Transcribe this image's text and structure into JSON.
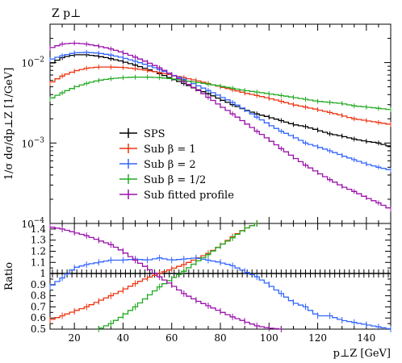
{
  "chart_data": [
    {
      "type": "line",
      "title": "Z p⊥",
      "ylabel": "1/σ dσ/dp⊥Z [1/GeV]",
      "xlabel": "",
      "x_scale": "linear",
      "y_scale": "log",
      "xlim": [
        10,
        150
      ],
      "ylim": [
        0.0001,
        0.03
      ],
      "y_tick_labels": [
        {
          "value": 0.01,
          "base": "10",
          "exp": "−2"
        },
        {
          "value": 0.001,
          "base": "10",
          "exp": "−3"
        },
        {
          "value": 0.0001,
          "base": "10",
          "exp": "−4"
        }
      ],
      "legend_position": "lower-left",
      "series": [
        {
          "name": "SPS",
          "color": "#000000",
          "x": [
            10,
            15,
            20,
            25,
            30,
            35,
            40,
            45,
            50,
            55,
            60,
            65,
            70,
            75,
            80,
            85,
            90,
            95,
            100,
            105,
            110,
            115,
            120,
            125,
            130,
            135,
            140,
            145,
            150
          ],
          "y": [
            0.0095,
            0.0115,
            0.0125,
            0.0125,
            0.012,
            0.0112,
            0.0103,
            0.0093,
            0.0083,
            0.0073,
            0.0063,
            0.0055,
            0.0047,
            0.0041,
            0.0035,
            0.003,
            0.0026,
            0.0023,
            0.0021,
            0.0019,
            0.0017,
            0.0016,
            0.00145,
            0.0013,
            0.00122,
            0.00112,
            0.00105,
            0.001,
            0.0009
          ]
        },
        {
          "name": "Sub β = 1",
          "color": "#ee3311",
          "x": [
            10,
            15,
            20,
            25,
            30,
            35,
            40,
            45,
            50,
            55,
            60,
            65,
            70,
            75,
            80,
            85,
            90,
            95,
            100,
            105,
            110,
            115,
            120,
            125,
            130,
            135,
            140,
            145,
            150
          ],
          "y": [
            0.0055,
            0.0068,
            0.0078,
            0.0085,
            0.0088,
            0.0088,
            0.0087,
            0.0084,
            0.008,
            0.0075,
            0.007,
            0.0065,
            0.006,
            0.0055,
            0.005,
            0.0046,
            0.0042,
            0.0039,
            0.0036,
            0.0033,
            0.003,
            0.0028,
            0.0026,
            0.0024,
            0.0022,
            0.002,
            0.0019,
            0.0018,
            0.0017
          ]
        },
        {
          "name": "Sub β = 2",
          "color": "#3366ff",
          "x": [
            10,
            15,
            20,
            25,
            30,
            35,
            40,
            45,
            50,
            55,
            60,
            65,
            70,
            75,
            80,
            85,
            90,
            95,
            100,
            105,
            110,
            115,
            120,
            125,
            130,
            135,
            140,
            145,
            150
          ],
          "y": [
            0.0108,
            0.0122,
            0.0132,
            0.0134,
            0.0131,
            0.0124,
            0.0115,
            0.0104,
            0.0093,
            0.0082,
            0.0071,
            0.0062,
            0.0053,
            0.0045,
            0.0038,
            0.0032,
            0.0026,
            0.0021,
            0.0017,
            0.0014,
            0.0012,
            0.001,
            0.0009,
            0.0008,
            0.0007,
            0.00062,
            0.00055,
            0.0005,
            0.00046
          ]
        },
        {
          "name": "Sub β = 1/2",
          "color": "#22aa22",
          "x": [
            10,
            15,
            20,
            25,
            30,
            35,
            40,
            45,
            50,
            55,
            60,
            65,
            70,
            75,
            80,
            85,
            90,
            95,
            100,
            105,
            110,
            115,
            120,
            125,
            130,
            135,
            140,
            145,
            150
          ],
          "y": [
            0.0035,
            0.0042,
            0.0049,
            0.0055,
            0.006,
            0.0063,
            0.0065,
            0.0066,
            0.0066,
            0.0065,
            0.0063,
            0.006,
            0.0057,
            0.0054,
            0.0051,
            0.0048,
            0.0045,
            0.0043,
            0.0041,
            0.0039,
            0.0037,
            0.0035,
            0.0033,
            0.0032,
            0.0031,
            0.0029,
            0.0028,
            0.0027,
            0.0026
          ]
        },
        {
          "name": "Sub fitted profile",
          "color": "#9911aa",
          "x": [
            10,
            15,
            20,
            25,
            30,
            35,
            40,
            45,
            50,
            55,
            60,
            65,
            70,
            75,
            80,
            85,
            90,
            95,
            100,
            105,
            110,
            115,
            120,
            125,
            130,
            135,
            140,
            145,
            150
          ],
          "y": [
            0.015,
            0.017,
            0.0175,
            0.017,
            0.016,
            0.0148,
            0.0133,
            0.0117,
            0.0101,
            0.0086,
            0.0071,
            0.0058,
            0.0047,
            0.0037,
            0.0029,
            0.0023,
            0.0018,
            0.0014,
            0.0011,
            0.00085,
            0.00067,
            0.00053,
            0.00043,
            0.00035,
            0.00029,
            0.00025,
            0.00021,
            0.00018,
            0.00015
          ]
        }
      ]
    },
    {
      "type": "line",
      "title": "",
      "xlabel": "p⊥Z [GeV]",
      "ylabel": "Ratio",
      "xlim": [
        10,
        150
      ],
      "ylim": [
        0.5,
        1.45
      ],
      "x_ticks": [
        20,
        40,
        60,
        80,
        100,
        120,
        140
      ],
      "y_ticks": [
        0.5,
        0.6,
        0.7,
        0.8,
        0.9,
        1,
        1.1,
        1.2,
        1.3,
        1.4
      ],
      "series": [
        {
          "name": "SPS",
          "color": "#000000",
          "x": [
            10,
            150
          ],
          "y": [
            1.0,
            1.0
          ]
        },
        {
          "name": "Sub β = 1",
          "color": "#ee3311",
          "x": [
            10,
            15,
            20,
            25,
            30,
            35,
            40,
            45,
            50,
            55,
            60,
            65,
            70,
            75,
            80,
            85,
            90,
            95
          ],
          "y": [
            0.58,
            0.62,
            0.66,
            0.7,
            0.75,
            0.8,
            0.85,
            0.91,
            0.96,
            1.0,
            1.04,
            1.08,
            1.13,
            1.18,
            1.25,
            1.33,
            1.4,
            1.45
          ]
        },
        {
          "name": "Sub β = 2",
          "color": "#3366ff",
          "x": [
            10,
            15,
            20,
            25,
            30,
            35,
            40,
            45,
            50,
            55,
            60,
            65,
            70,
            75,
            80,
            85,
            90,
            95,
            100,
            105,
            110,
            115,
            120,
            125,
            130,
            135,
            140,
            145,
            150
          ],
          "y": [
            0.88,
            0.96,
            1.05,
            1.08,
            1.1,
            1.12,
            1.12,
            1.13,
            1.12,
            1.14,
            1.12,
            1.13,
            1.14,
            1.12,
            1.1,
            1.07,
            1.02,
            0.97,
            0.9,
            0.82,
            0.74,
            0.7,
            0.62,
            0.62,
            0.58,
            0.56,
            0.54,
            0.52,
            0.5
          ]
        },
        {
          "name": "Sub β = 1/2",
          "color": "#22aa22",
          "x": [
            30,
            35,
            40,
            45,
            50,
            55,
            60,
            65,
            70,
            75,
            80,
            85,
            90,
            95
          ],
          "y": [
            0.5,
            0.55,
            0.62,
            0.7,
            0.79,
            0.88,
            0.95,
            1.02,
            1.1,
            1.17,
            1.25,
            1.32,
            1.4,
            1.45
          ]
        },
        {
          "name": "Sub fitted profile",
          "color": "#9911aa",
          "x": [
            10,
            15,
            20,
            25,
            30,
            35,
            40,
            45,
            50,
            55,
            60,
            65,
            70,
            75,
            80,
            85,
            90,
            95,
            100,
            105
          ],
          "y": [
            1.42,
            1.4,
            1.37,
            1.34,
            1.3,
            1.26,
            1.2,
            1.12,
            1.05,
            0.97,
            0.9,
            0.82,
            0.76,
            0.71,
            0.66,
            0.61,
            0.57,
            0.53,
            0.51,
            0.5
          ]
        }
      ]
    }
  ]
}
